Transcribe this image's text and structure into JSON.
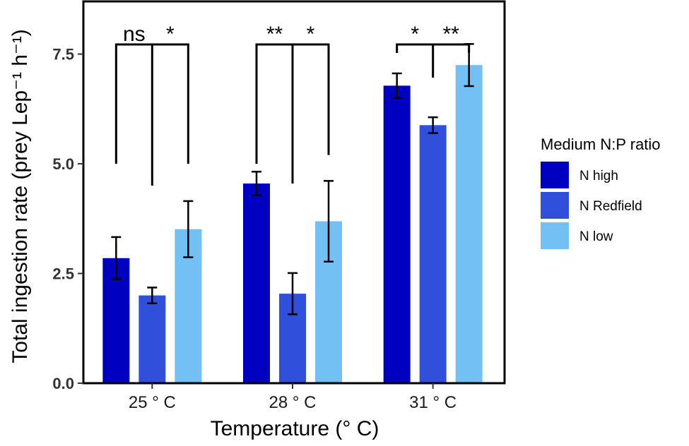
{
  "chart_data": {
    "type": "bar",
    "title": "",
    "xlabel": "Temperature (° C)",
    "ylabel": "Total ingestion rate (prey Lep⁻¹ h⁻¹)",
    "ylim": [
      0,
      8.7
    ],
    "yticks": [
      0,
      2.5,
      5,
      7.5
    ],
    "ytick_labels": [
      "0.0",
      "2.5",
      "5.0",
      "7.5"
    ],
    "categories": [
      "25 ° C",
      "28 ° C",
      "31 ° C"
    ],
    "series": [
      {
        "name": "N high",
        "color": "#0000c0",
        "values": [
          2.85,
          4.55,
          6.78
        ],
        "errors": [
          0.48,
          0.27,
          0.28
        ]
      },
      {
        "name": "N Redfield",
        "color": "#3050dc",
        "values": [
          2.0,
          2.04,
          5.88
        ],
        "errors": [
          0.18,
          0.47,
          0.18
        ]
      },
      {
        "name": "N low",
        "color": "#73c0f5",
        "values": [
          3.51,
          3.69,
          7.25
        ],
        "errors": [
          0.64,
          0.92,
          0.48
        ]
      }
    ],
    "grid": false,
    "legend": {
      "title": "Medium N:P ratio",
      "position": "right"
    },
    "significance": [
      {
        "group": 0,
        "pairs": [
          {
            "label": "ns"
          },
          {
            "label": "*"
          }
        ]
      },
      {
        "group": 1,
        "pairs": [
          {
            "label": "**"
          },
          {
            "label": "*"
          }
        ]
      },
      {
        "group": 2,
        "pairs": [
          {
            "label": "*"
          },
          {
            "label": "**"
          }
        ]
      }
    ]
  }
}
